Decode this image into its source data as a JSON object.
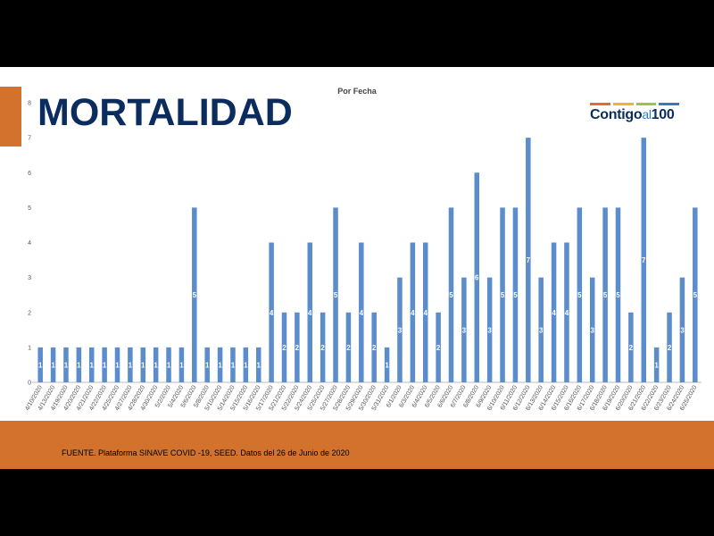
{
  "slide": {
    "title": "MORTALIDAD",
    "logo": {
      "word": "Contigo",
      "connector": "al",
      "number": "100"
    },
    "source": "FUENTE. Plataforma SINAVE COVID -19, SEED. Datos del 26 de Junio de 2020"
  },
  "colors": {
    "accent": "#D2722C",
    "title": "#0B2C5E",
    "bar": "#5B8CCB",
    "logo_lines": [
      "#E36E2A",
      "#F2B233",
      "#9CC34A",
      "#2E7FC1"
    ]
  },
  "chart_data": {
    "type": "bar",
    "title": "Por Fecha",
    "ylim": [
      0,
      8
    ],
    "yticks": [
      "0",
      "1",
      "2",
      "3",
      "4",
      "5",
      "6",
      "7",
      "8"
    ],
    "grid": false,
    "categories": [
      "4/10/2020",
      "4/13/2020",
      "4/19/2020",
      "4/20/2020",
      "4/21/2020",
      "4/22/2020",
      "4/25/2020",
      "4/27/2020",
      "4/28/2020",
      "4/30/2020",
      "5/2/2020",
      "5/4/2020",
      "5/6/2020",
      "5/8/2020",
      "5/10/2020",
      "5/14/2020",
      "5/15/2020",
      "5/16/2020",
      "5/17/2020",
      "5/21/2020",
      "5/22/2020",
      "5/24/2020",
      "5/25/2020",
      "5/27/2020",
      "5/28/2020",
      "5/29/2020",
      "5/30/2020",
      "5/31/2020",
      "6/1/2020",
      "6/3/2020",
      "6/4/2020",
      "6/5/2020",
      "6/6/2020",
      "6/7/2020",
      "6/8/2020",
      "6/9/2020",
      "6/10/2020",
      "6/11/2020",
      "6/12/2020",
      "6/13/2020",
      "6/14/2020",
      "6/15/2020",
      "6/16/2020",
      "6/17/2020",
      "6/18/2020",
      "6/19/2020",
      "6/20/2020",
      "6/21/2020",
      "6/22/2020",
      "6/23/2020",
      "6/24/2020",
      "6/25/2020"
    ],
    "values": [
      1,
      1,
      1,
      1,
      1,
      1,
      1,
      1,
      1,
      1,
      1,
      1,
      5,
      1,
      1,
      1,
      1,
      1,
      4,
      2,
      2,
      4,
      2,
      5,
      2,
      4,
      2,
      1,
      3,
      4,
      4,
      2,
      5,
      3,
      6,
      3,
      5,
      5,
      7,
      3,
      4,
      4,
      5,
      3,
      5,
      5,
      2,
      7,
      1,
      2,
      3,
      5
    ]
  }
}
